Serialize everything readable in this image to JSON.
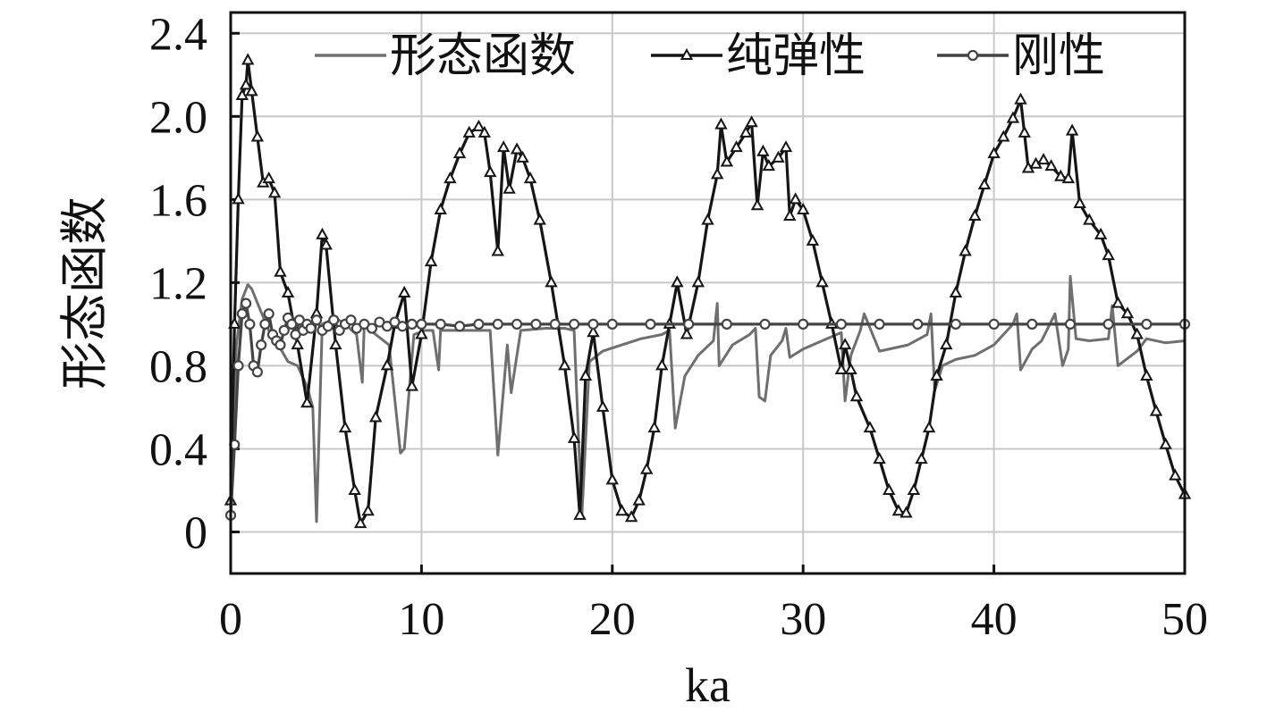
{
  "chart_data": {
    "type": "line",
    "title": "",
    "xlabel": "ka",
    "ylabel": "形态函数",
    "xlim": [
      0,
      50
    ],
    "ylim": [
      -0.2,
      2.5
    ],
    "xticks": [
      "0",
      "10",
      "20",
      "30",
      "40",
      "50"
    ],
    "yticks": [
      "0",
      "0.4",
      "0.8",
      "1.2",
      "1.6",
      "2.0",
      "2.4"
    ],
    "grid": true,
    "legend_position": "top",
    "series": [
      {
        "name": "形态函数",
        "color": "#6f6f6f",
        "marker": "none",
        "x": [
          0,
          0.3,
          0.6,
          0.9,
          1.1,
          1.5,
          2.0,
          2.5,
          3.0,
          3.5,
          4.0,
          4.3,
          4.5,
          4.8,
          5.5,
          6.0,
          6.6,
          6.9,
          7.0,
          7.2,
          7.6,
          8.3,
          8.9,
          9.1,
          9.6,
          10.2,
          10.6,
          10.9,
          11.0,
          11.3,
          12.5,
          13.6,
          14.0,
          14.5,
          14.7,
          15.2,
          16.5,
          17.5,
          18.0,
          18.4,
          18.8,
          19.5,
          20.5,
          21.5,
          22.6,
          23.0,
          23.3,
          23.8,
          24.5,
          25.3,
          25.5,
          25.6,
          26.3,
          27.2,
          27.5,
          27.7,
          28.0,
          28.3,
          28.9,
          29.1,
          29.3,
          30.0,
          31.0,
          32.0,
          32.2,
          32.5,
          33.0,
          33.2,
          34.0,
          35.5,
          36.5,
          36.7,
          36.9,
          37.3,
          38.0,
          39.0,
          40.0,
          41.0,
          41.2,
          41.4,
          42.0,
          42.5,
          43.2,
          43.6,
          43.9,
          44.0,
          44.3,
          45.0,
          46.0,
          46.2,
          46.5,
          47.5,
          48.0,
          49.0,
          50.0
        ],
        "y": [
          0.1,
          0.9,
          1.12,
          1.19,
          1.17,
          1.08,
          0.97,
          0.9,
          0.82,
          0.8,
          0.7,
          0.6,
          0.05,
          1.0,
          1.03,
          1.0,
          0.95,
          0.72,
          1.0,
          0.98,
          0.95,
          0.9,
          0.38,
          0.4,
          0.95,
          0.97,
          0.97,
          0.78,
          0.97,
          0.97,
          0.97,
          0.97,
          0.37,
          0.9,
          0.67,
          0.97,
          0.98,
          0.98,
          0.97,
          0.07,
          0.82,
          0.87,
          0.9,
          0.93,
          0.95,
          0.97,
          0.5,
          0.75,
          0.85,
          0.92,
          1.1,
          0.8,
          0.9,
          0.95,
          0.98,
          0.65,
          0.63,
          0.85,
          0.92,
          0.98,
          0.84,
          0.88,
          0.92,
          0.96,
          0.63,
          0.85,
          0.97,
          1.05,
          0.87,
          0.9,
          0.95,
          1.05,
          0.68,
          0.8,
          0.83,
          0.85,
          0.9,
          1.0,
          1.05,
          0.78,
          0.88,
          0.92,
          1.05,
          0.8,
          0.88,
          1.23,
          0.93,
          0.92,
          0.93,
          1.09,
          0.8,
          0.87,
          0.93,
          0.91,
          0.92
        ]
      },
      {
        "name": "纯弹性",
        "color": "#151515",
        "marker": "triangle",
        "x": [
          0,
          0.2,
          0.4,
          0.6,
          0.8,
          0.9,
          1.1,
          1.4,
          1.7,
          2.0,
          2.3,
          2.6,
          3.0,
          3.5,
          4.0,
          4.5,
          4.8,
          5.0,
          5.5,
          6.0,
          6.5,
          6.8,
          7.2,
          7.6,
          8.2,
          8.6,
          9.1,
          9.5,
          10.0,
          10.5,
          11.0,
          11.5,
          12.0,
          12.5,
          13.0,
          13.3,
          13.6,
          14.0,
          14.3,
          14.6,
          15.0,
          15.3,
          15.7,
          16.2,
          16.8,
          17.5,
          18.0,
          18.3,
          18.6,
          19.0,
          19.5,
          20.0,
          20.5,
          21.0,
          21.4,
          21.8,
          22.2,
          22.6,
          23.0,
          23.4,
          23.9,
          24.5,
          25.0,
          25.5,
          25.7,
          26.0,
          26.5,
          27.0,
          27.3,
          27.6,
          27.9,
          28.2,
          28.7,
          29.1,
          29.3,
          29.6,
          30.0,
          30.5,
          31.0,
          31.5,
          32.0,
          32.2,
          32.5,
          32.8,
          33.5,
          34.0,
          34.5,
          35.0,
          35.4,
          35.8,
          36.2,
          36.6,
          37.0,
          37.5,
          38.0,
          38.5,
          39.0,
          39.5,
          40.0,
          40.5,
          41.0,
          41.4,
          41.6,
          41.8,
          42.2,
          42.6,
          43.0,
          43.5,
          43.9,
          44.1,
          44.5,
          45.0,
          45.6,
          46.0,
          46.5,
          47.0,
          47.5,
          48.0,
          48.5,
          49.0,
          49.5,
          50.0
        ],
        "y": [
          0.15,
          1.0,
          1.6,
          2.1,
          2.15,
          2.27,
          2.12,
          1.9,
          1.68,
          1.7,
          1.63,
          1.25,
          1.15,
          0.9,
          0.62,
          1.05,
          1.43,
          1.38,
          0.9,
          0.5,
          0.2,
          0.04,
          0.1,
          0.55,
          0.8,
          1.0,
          1.15,
          0.7,
          0.95,
          1.3,
          1.55,
          1.7,
          1.82,
          1.92,
          1.95,
          1.92,
          1.73,
          1.35,
          1.85,
          1.65,
          1.84,
          1.8,
          1.7,
          1.5,
          1.2,
          0.8,
          0.45,
          0.08,
          0.75,
          0.96,
          0.6,
          0.25,
          0.1,
          0.07,
          0.15,
          0.3,
          0.5,
          0.8,
          1.0,
          1.2,
          0.95,
          1.2,
          1.5,
          1.72,
          1.96,
          1.78,
          1.85,
          1.92,
          1.97,
          1.57,
          1.83,
          1.76,
          1.8,
          1.85,
          1.52,
          1.6,
          1.55,
          1.4,
          1.2,
          1.0,
          0.78,
          0.9,
          0.78,
          0.65,
          0.5,
          0.35,
          0.2,
          0.1,
          0.09,
          0.2,
          0.35,
          0.5,
          0.75,
          0.9,
          1.15,
          1.35,
          1.52,
          1.67,
          1.82,
          1.9,
          1.99,
          2.08,
          1.92,
          1.75,
          1.77,
          1.79,
          1.76,
          1.71,
          1.7,
          1.93,
          1.58,
          1.5,
          1.43,
          1.33,
          1.1,
          1.05,
          0.95,
          0.75,
          0.58,
          0.42,
          0.27,
          0.18
        ]
      },
      {
        "name": "刚性",
        "color": "#444444",
        "marker": "circle",
        "x": [
          0,
          0.2,
          0.4,
          0.6,
          0.8,
          1.0,
          1.2,
          1.4,
          1.6,
          1.8,
          2.0,
          2.2,
          2.4,
          2.6,
          2.8,
          3.0,
          3.2,
          3.4,
          3.6,
          3.8,
          4.0,
          4.2,
          4.5,
          4.8,
          5.1,
          5.4,
          5.7,
          6.0,
          6.3,
          6.6,
          7.0,
          7.4,
          7.8,
          8.2,
          8.6,
          9.0,
          9.5,
          10.0,
          11.0,
          12.0,
          13.0,
          14.0,
          15.0,
          16.0,
          17.0,
          18.0,
          19.0,
          20.0,
          22.0,
          24.0,
          26.0,
          28.0,
          30.0,
          32.0,
          34.0,
          36.0,
          38.0,
          40.0,
          42.0,
          44.0,
          46.0,
          48.0,
          50.0
        ],
        "y": [
          0.08,
          0.42,
          0.8,
          1.05,
          1.1,
          1.0,
          0.8,
          0.77,
          0.9,
          1.0,
          1.05,
          0.95,
          0.92,
          0.9,
          0.97,
          1.03,
          1.0,
          0.95,
          1.02,
          0.97,
          1.0,
          0.98,
          1.02,
          0.97,
          0.99,
          1.02,
          0.97,
          1.0,
          1.02,
          0.98,
          1.0,
          0.98,
          1.01,
          0.99,
          1.01,
          0.99,
          1.0,
          1.0,
          1.0,
          0.99,
          1.0,
          1.0,
          1.0,
          1.0,
          1.0,
          1.0,
          1.0,
          1.0,
          1.0,
          1.0,
          1.0,
          1.0,
          1.0,
          1.0,
          1.0,
          1.0,
          1.0,
          1.0,
          1.0,
          1.0,
          1.0,
          1.0,
          1.0
        ]
      }
    ]
  }
}
